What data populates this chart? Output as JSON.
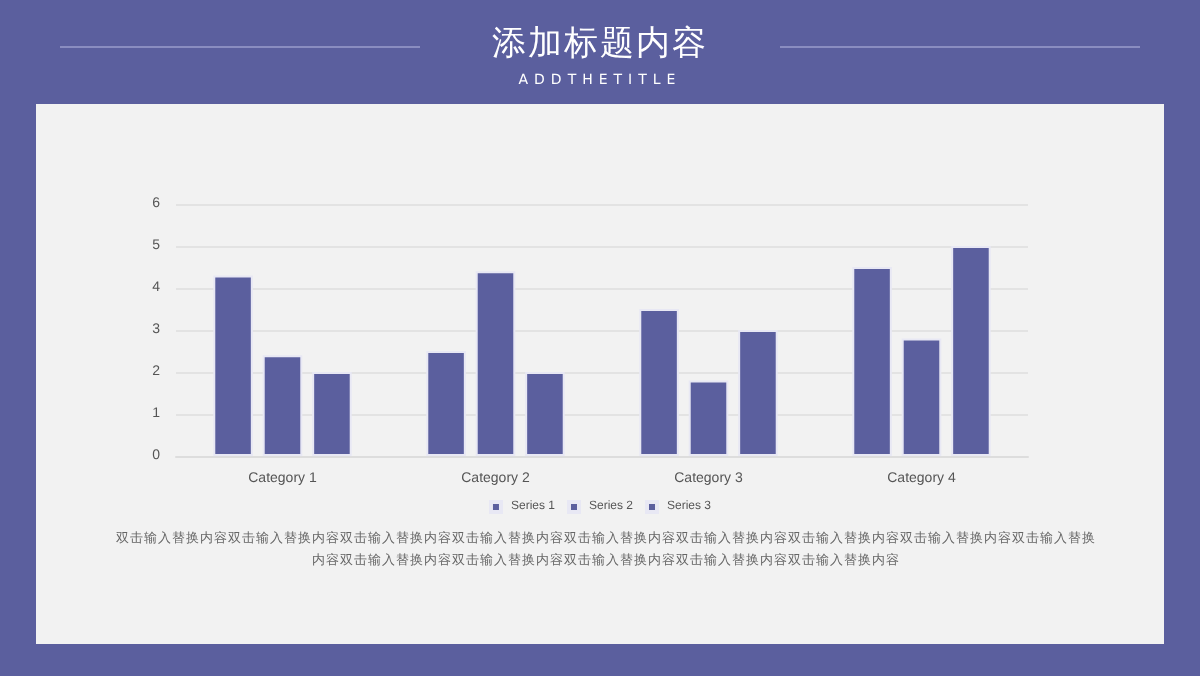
{
  "chart_data": {
    "type": "bar",
    "title": "添加标题内容",
    "subtitle": "ADDTHETITLE",
    "categories": [
      "Category 1",
      "Category 2",
      "Category 3",
      "Category 4"
    ],
    "series": [
      {
        "name": "Series 1",
        "color": "#5b5f9e",
        "values": [
          4.3,
          2.5,
          3.5,
          4.5
        ]
      },
      {
        "name": "Series 2",
        "color": "#5b5f9e",
        "values": [
          2.4,
          4.4,
          1.8,
          2.8
        ]
      },
      {
        "name": "Series 3",
        "color": "#5b5f9e",
        "values": [
          2,
          2,
          3,
          5
        ]
      }
    ],
    "ylim": [
      0,
      6
    ],
    "yticks": [
      0,
      1,
      2,
      3,
      4,
      5,
      6
    ],
    "grid": "y",
    "legend": "bottom",
    "annotations": [
      "双击输入替换内容双击输入替换内容双击输入替换内容双击输入替换内容双击输入替换内容双击输入替换内容双击输入替换内容双击输入替换内容双击输入替换内容双击输入替换内容双击输入替换内容双击输入替换内容双击输入替换内容双击输入替换内容"
    ]
  }
}
